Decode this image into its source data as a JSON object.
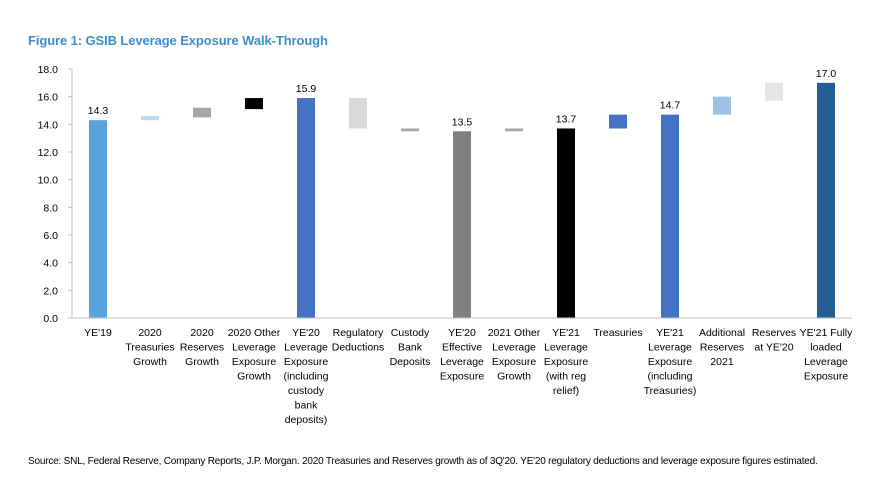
{
  "figure": {
    "title": "Figure 1: GSIB Leverage Exposure Walk-Through",
    "source": "Source: SNL, Federal Reserve, Company Reports, J.P. Morgan. 2020 Treasuries and Reserves growth as of 3Q'20. YE'20 regulatory deductions and leverage exposure figures estimated."
  },
  "chart_data": {
    "type": "bar",
    "subtype": "waterfall",
    "title": "Figure 1: GSIB Leverage Exposure Walk-Through",
    "xlabel": "",
    "ylabel": "",
    "ylim": [
      0,
      18
    ],
    "yticks": [
      "0.0",
      "2.0",
      "4.0",
      "6.0",
      "8.0",
      "10.0",
      "12.0",
      "14.0",
      "16.0",
      "18.0"
    ],
    "bars": [
      {
        "category": "YE'19",
        "lines": [
          "YE'19"
        ],
        "base": 0,
        "top": 14.3,
        "label": "14.3",
        "color": "#5ba3dc"
      },
      {
        "category": "2020 Treasuries Growth",
        "lines": [
          "2020",
          "Treasuries",
          "Growth"
        ],
        "base": 14.3,
        "top": 14.6,
        "label": "",
        "color": "#bcd8ef"
      },
      {
        "category": "2020 Reserves Growth",
        "lines": [
          "2020",
          "Reserves",
          "Growth"
        ],
        "base": 14.5,
        "top": 15.2,
        "label": "",
        "color": "#a6a6a6"
      },
      {
        "category": "2020 Other Leverage Exposure Growth",
        "lines": [
          "2020 Other",
          "Leverage",
          "Exposure",
          "Growth"
        ],
        "base": 15.1,
        "top": 15.9,
        "label": "",
        "color": "#000000"
      },
      {
        "category": "YE'20 Leverage Exposure (including custody bank deposits)",
        "lines": [
          "YE'20",
          "Leverage",
          "Exposure",
          "(including",
          "custody",
          "bank",
          "deposits)"
        ],
        "base": 0,
        "top": 15.9,
        "label": "15.9",
        "color": "#4472c4"
      },
      {
        "category": "Regulatory Deductions",
        "lines": [
          "Regulatory",
          "Deductions"
        ],
        "base": 13.7,
        "top": 15.9,
        "label": "",
        "color": "#d9d9d9"
      },
      {
        "category": "Custody Bank Deposits",
        "lines": [
          "Custody",
          "Bank",
          "Deposits"
        ],
        "base": 13.5,
        "top": 13.7,
        "label": "",
        "color": "#a6a6a6"
      },
      {
        "category": "YE'20 Effective Leverage Exposure",
        "lines": [
          "YE'20",
          "Effective",
          "Leverage",
          "Exposure"
        ],
        "base": 0,
        "top": 13.5,
        "label": "13.5",
        "color": "#808080"
      },
      {
        "category": "2021 Other Leverage Exposure Growth",
        "lines": [
          "2021 Other",
          "Leverage",
          "Exposure",
          "Growth"
        ],
        "base": 13.5,
        "top": 13.7,
        "label": "",
        "color": "#a6a6a6"
      },
      {
        "category": "YE'21 Leverage Exposure (with reg relief)",
        "lines": [
          "YE'21",
          "Leverage",
          "Exposure",
          "(with reg",
          "relief)"
        ],
        "base": 0,
        "top": 13.7,
        "label": "13.7",
        "color": "#000000"
      },
      {
        "category": "Treasuries",
        "lines": [
          "Treasuries"
        ],
        "base": 13.7,
        "top": 14.7,
        "label": "",
        "color": "#4472c4"
      },
      {
        "category": "YE'21 Leverage Exposure (including Treasuries)",
        "lines": [
          "YE'21",
          "Leverage",
          "Exposure",
          "(including",
          "Treasuries)"
        ],
        "base": 0,
        "top": 14.7,
        "label": "14.7",
        "color": "#4472c4"
      },
      {
        "category": "Additional Reserves 2021",
        "lines": [
          "Additional",
          "Reserves",
          "2021"
        ],
        "base": 14.7,
        "top": 16.0,
        "label": "",
        "color": "#9dc3e6"
      },
      {
        "category": "Reserves at YE'20",
        "lines": [
          "Reserves",
          "at YE'20"
        ],
        "base": 15.7,
        "top": 17.0,
        "label": "",
        "color": "#e7e6e6"
      },
      {
        "category": "YE'21 Fully loaded Leverage Exposure",
        "lines": [
          "YE'21 Fully",
          "loaded",
          "Leverage",
          "Exposure"
        ],
        "base": 0,
        "top": 17.0,
        "label": "17.0",
        "color": "#255e91"
      }
    ]
  }
}
